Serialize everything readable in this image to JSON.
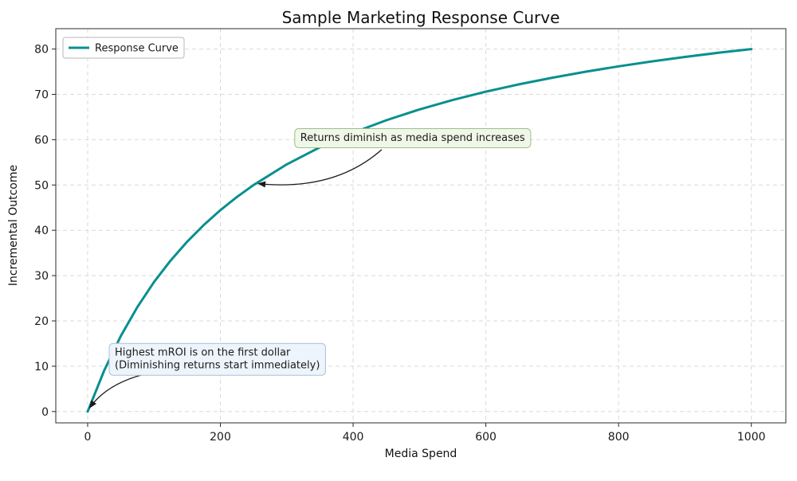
{
  "chart_data": {
    "type": "line",
    "title": "Sample Marketing Response Curve",
    "xlabel": "Media Spend",
    "ylabel": "Incremental Outcome",
    "xlim": [
      -48,
      1052
    ],
    "ylim": [
      -2.5,
      84.5
    ],
    "x_ticks": [
      0,
      200,
      400,
      600,
      800,
      1000
    ],
    "y_ticks": [
      0,
      10,
      20,
      30,
      40,
      50,
      60,
      70,
      80
    ],
    "grid": true,
    "grid_color": "#d9d9d9",
    "legend": {
      "position": "upper left",
      "entries": [
        {
          "label": "Response Curve",
          "color": "#0a8f8f"
        }
      ]
    },
    "series": [
      {
        "name": "Response Curve",
        "color": "#0a8f8f",
        "x": [
          0,
          25,
          50,
          75,
          100,
          125,
          150,
          175,
          200,
          225,
          250,
          300,
          350,
          400,
          450,
          500,
          550,
          600,
          650,
          700,
          750,
          800,
          850,
          900,
          950,
          1000
        ],
        "y": [
          0,
          9.09,
          16.67,
          23.08,
          28.57,
          33.33,
          37.5,
          41.18,
          44.44,
          47.37,
          50,
          54.55,
          58.33,
          61.54,
          64.29,
          66.67,
          68.75,
          70.59,
          72.22,
          73.68,
          75,
          76.19,
          77.27,
          78.26,
          79.17,
          80
        ]
      }
    ],
    "annotations": [
      {
        "lines": [
          "Returns diminish as media spend increases"
        ],
        "target_xy": [
          250,
          50
        ],
        "box_xy": [
          312,
          62.7
        ],
        "arrow": {
          "start": [
            443,
            57.8
          ],
          "ctrl": [
            372,
            48.6
          ],
          "end": [
            257,
            50.3
          ]
        },
        "bg": "#f0f7e9",
        "border": "#9fbe87"
      },
      {
        "lines": [
          "Highest mROI is on the first dollar",
          "(Diminishing returns start immediately)"
        ],
        "target_xy": [
          0,
          0
        ],
        "box_xy": [
          32.5,
          15.3
        ],
        "arrow": {
          "start": [
            96,
            8.6
          ],
          "ctrl": [
            30,
            6.5
          ],
          "end": [
            3,
            0.8
          ]
        },
        "bg": "#eef4fc",
        "border": "#a9c0d8"
      }
    ]
  }
}
